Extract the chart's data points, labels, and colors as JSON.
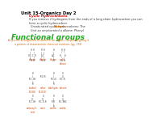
{
  "title": "Unit 15-Organics Day 2",
  "section1_title": "Cyclic Hydrocarbons",
  "section1_body": "If you remove 2 hydrogens from the ends of a long chain hydrocarbon you can\nform a cyclic hydrocarbon.",
  "line1": "Unsaturated cyclic hydrocarbons: The alkenes",
  "line1_colored": "alkenes",
  "line2": "Unit an unsaturated a alkene: Phenyl",
  "section2_title": "Functional groups",
  "section2_subtitle": "A specific arrangement of atoms in an organic compound giving it\na pattern of characteristic chemical reactions (pg. 174)",
  "bg_color": "#ffffff",
  "title_color": "#000000",
  "section1_title_color": "#cc0000",
  "green_title_color": "#22aa22",
  "orange_subtitle_color": "#cc6600",
  "body_color": "#333333"
}
